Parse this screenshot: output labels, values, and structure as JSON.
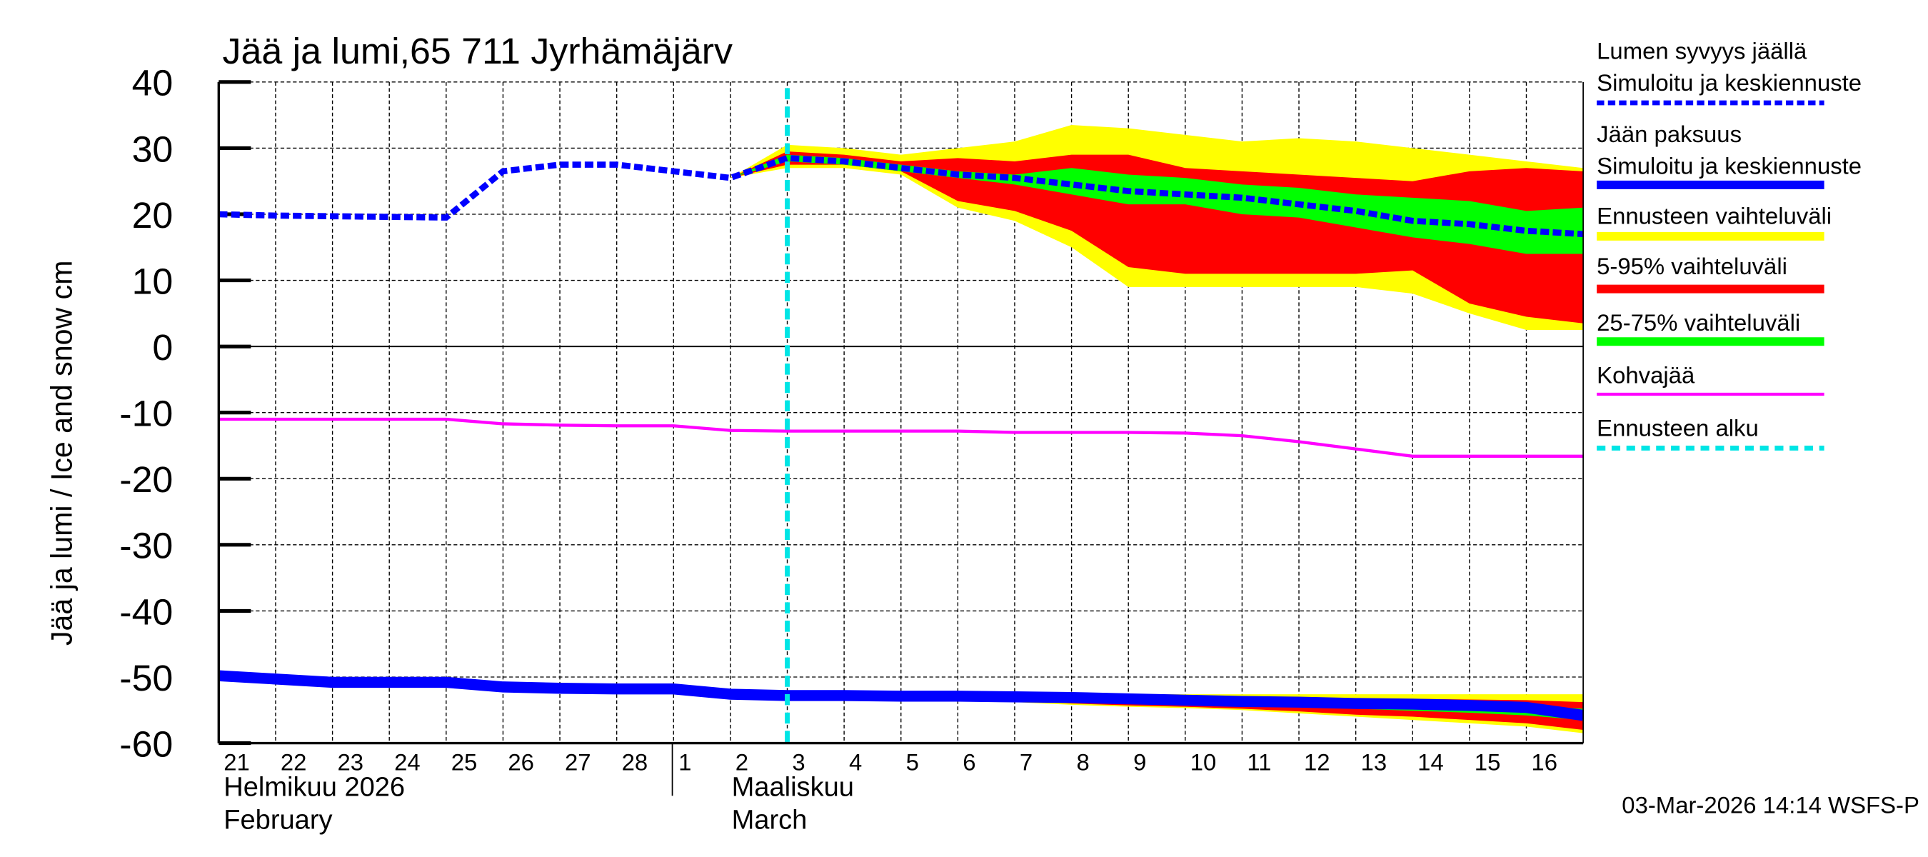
{
  "chart_data": {
    "type": "area",
    "title": "Jää ja lumi,65 711 Jyrhämäjärv",
    "ylabel": "Jää ja lumi / Ice and snow    cm",
    "ylim": [
      -60,
      40
    ],
    "yticks": [
      "40",
      "30",
      "20",
      "10",
      "0",
      "-10",
      "-20",
      "-30",
      "-40",
      "-50",
      "-60"
    ],
    "ytick_values": [
      40,
      30,
      20,
      10,
      0,
      -10,
      -20,
      -30,
      -40,
      -50,
      -60
    ],
    "x_start": "2026-02-21",
    "x_end": "2026-03-17",
    "day_labels": [
      "21",
      "22",
      "23",
      "24",
      "25",
      "26",
      "27",
      "28",
      "1",
      "2",
      "3",
      "4",
      "5",
      "6",
      "7",
      "8",
      "9",
      "10",
      "11",
      "12",
      "13",
      "14",
      "15",
      "16"
    ],
    "month_labels": [
      {
        "fi": "Helmikuu  2026",
        "en": "February"
      },
      {
        "fi": "Maaliskuu",
        "en": "March"
      }
    ],
    "grid": true,
    "forecast_start": "2026-03-03",
    "dates": [
      "02-21",
      "02-22",
      "02-23",
      "02-24",
      "02-25",
      "02-26",
      "02-27",
      "02-28",
      "03-01",
      "03-02",
      "03-03",
      "03-04",
      "03-05",
      "03-06",
      "03-07",
      "03-08",
      "03-09",
      "03-10",
      "03-11",
      "03-12",
      "03-13",
      "03-14",
      "03-15",
      "03-16",
      "03-17"
    ],
    "series": [
      {
        "name": "Lumen syvyys jäällä Simuloitu ja keskiennuste",
        "color": "#0000ff",
        "style": "dashed",
        "values": [
          20,
          19.8,
          19.7,
          19.6,
          19.5,
          26.5,
          27.5,
          27.5,
          26.5,
          25.5,
          28.5,
          28,
          27,
          26,
          25.5,
          24.5,
          23.5,
          23,
          22.5,
          21.5,
          20.5,
          19,
          18.5,
          17.5,
          17
        ]
      },
      {
        "name": "Jään paksuus Simuloitu ja keskiennuste",
        "color": "#0000ff",
        "style": "solid-thick",
        "values": [
          -49.8,
          -50.3,
          -50.8,
          -50.8,
          -50.8,
          -51.5,
          -51.7,
          -51.8,
          -51.8,
          -52.6,
          -52.8,
          -52.8,
          -52.9,
          -52.9,
          -53,
          -53.1,
          -53.3,
          -53.5,
          -53.7,
          -53.8,
          -54,
          -54.1,
          -54.3,
          -54.6,
          -55.8
        ]
      },
      {
        "name": "Kohvajää",
        "color": "#ff00ff",
        "style": "solid",
        "values": [
          -11,
          -11,
          -11,
          -11,
          -11,
          -11.7,
          -11.9,
          -12,
          -12,
          -12.7,
          -12.8,
          -12.8,
          -12.8,
          -12.8,
          -13,
          -13,
          -13,
          -13.1,
          -13.5,
          -14.4,
          -15.5,
          -16.6,
          -16.6,
          -16.6,
          -16.6
        ]
      }
    ],
    "bands": [
      {
        "name": "Ennusteen vaihteluväli",
        "color": "#ffff00",
        "target": "snow",
        "start_index": 9,
        "upper": [
          25.5,
          30.5,
          30,
          29,
          30,
          31,
          33.5,
          33,
          32,
          31,
          31.5,
          31,
          30,
          29,
          28,
          27
        ],
        "lower": [
          25.5,
          27,
          27,
          26,
          21,
          19,
          15,
          9,
          9,
          9,
          9,
          9,
          8,
          5,
          2.5,
          2.5
        ]
      },
      {
        "name": "5-95% vaihteluväli",
        "color": "#ff0000",
        "target": "snow",
        "start_index": 9,
        "upper": [
          25.5,
          29.5,
          29,
          28,
          28.5,
          28,
          29,
          29,
          27,
          26.5,
          26,
          25.5,
          25,
          26.5,
          27,
          26.5
        ],
        "lower": [
          25.5,
          27.5,
          27.5,
          26.5,
          22,
          20.5,
          17.5,
          12,
          11,
          11,
          11,
          11,
          11.5,
          6.5,
          4.5,
          3.5
        ]
      },
      {
        "name": "25-75% vaihteluväli",
        "color": "#00ff00",
        "target": "snow",
        "start_index": 9,
        "upper": [
          25.5,
          29,
          28.5,
          27.5,
          26.5,
          26,
          27,
          26,
          25.5,
          24.5,
          24,
          23,
          22.5,
          22,
          20.5,
          21
        ],
        "lower": [
          25.5,
          28,
          27.5,
          26.5,
          25.5,
          24.5,
          23,
          21.5,
          21.5,
          20,
          19.5,
          18,
          16.5,
          15.5,
          14,
          14
        ]
      },
      {
        "name": "Ennusteen vaihteluväli",
        "color": "#ffff00",
        "target": "ice",
        "start_index": 10,
        "upper": [
          -52.8,
          -52.7,
          -52.6,
          -52.6,
          -52.6,
          -52.6,
          -52.6,
          -52.6,
          -52.6,
          -52.6,
          -52.6,
          -52.6,
          -52.6,
          -52.6,
          -52.6
        ],
        "lower": [
          -52.8,
          -53,
          -53.2,
          -53.5,
          -53.8,
          -54.2,
          -54.5,
          -54.7,
          -55,
          -55.5,
          -56,
          -56.5,
          -57,
          -57.5,
          -58.5
        ]
      },
      {
        "name": "5-95% vaihteluväli",
        "color": "#ff0000",
        "target": "ice",
        "start_index": 10,
        "upper": [
          -52.8,
          -52.8,
          -52.8,
          -52.8,
          -52.9,
          -52.9,
          -53,
          -53.1,
          -53.2,
          -53.2,
          -53.3,
          -53.3,
          -53.4,
          -53.5,
          -53.8
        ],
        "lower": [
          -52.8,
          -52.9,
          -53,
          -53.2,
          -53.5,
          -54,
          -54.3,
          -54.5,
          -54.8,
          -55.2,
          -55.7,
          -56,
          -56.5,
          -57,
          -58
        ]
      },
      {
        "name": "25-75% vaihteluväli",
        "color": "#00ff00",
        "target": "ice",
        "start_index": 10,
        "upper": [
          -52.8,
          -52.8,
          -52.8,
          -52.9,
          -53,
          -53,
          -53.1,
          -53.3,
          -53.5,
          -53.6,
          -53.8,
          -54,
          -54.1,
          -54.3,
          -54.8
        ],
        "lower": [
          -52.8,
          -52.9,
          -53,
          -53.1,
          -53.3,
          -53.5,
          -53.7,
          -54,
          -54.2,
          -54.5,
          -54.8,
          -55.1,
          -55.4,
          -55.8,
          -56.5
        ]
      }
    ],
    "legend_position": "right",
    "legend": [
      {
        "label1": "Lumen syvyys jäällä",
        "label2": "Simuloitu ja keskiennuste",
        "color": "#0000ff",
        "style": "dashed"
      },
      {
        "label1": "Jään paksuus",
        "label2": "Simuloitu ja keskiennuste",
        "color": "#0000ff",
        "style": "solid"
      },
      {
        "label1": "Ennusteen vaihteluväli",
        "color": "#ffff00",
        "style": "solid"
      },
      {
        "label1": "5-95% vaihteluväli",
        "color": "#ff0000",
        "style": "solid"
      },
      {
        "label1": "25-75% vaihteluväli",
        "color": "#00ff00",
        "style": "solid"
      },
      {
        "label1": "Kohvajää",
        "color": "#ff00ff",
        "style": "thin"
      },
      {
        "label1": "Ennusteen alku",
        "color": "#00e5e5",
        "style": "dashed"
      }
    ],
    "footer": "03-Mar-2026 14:14 WSFS-P"
  }
}
